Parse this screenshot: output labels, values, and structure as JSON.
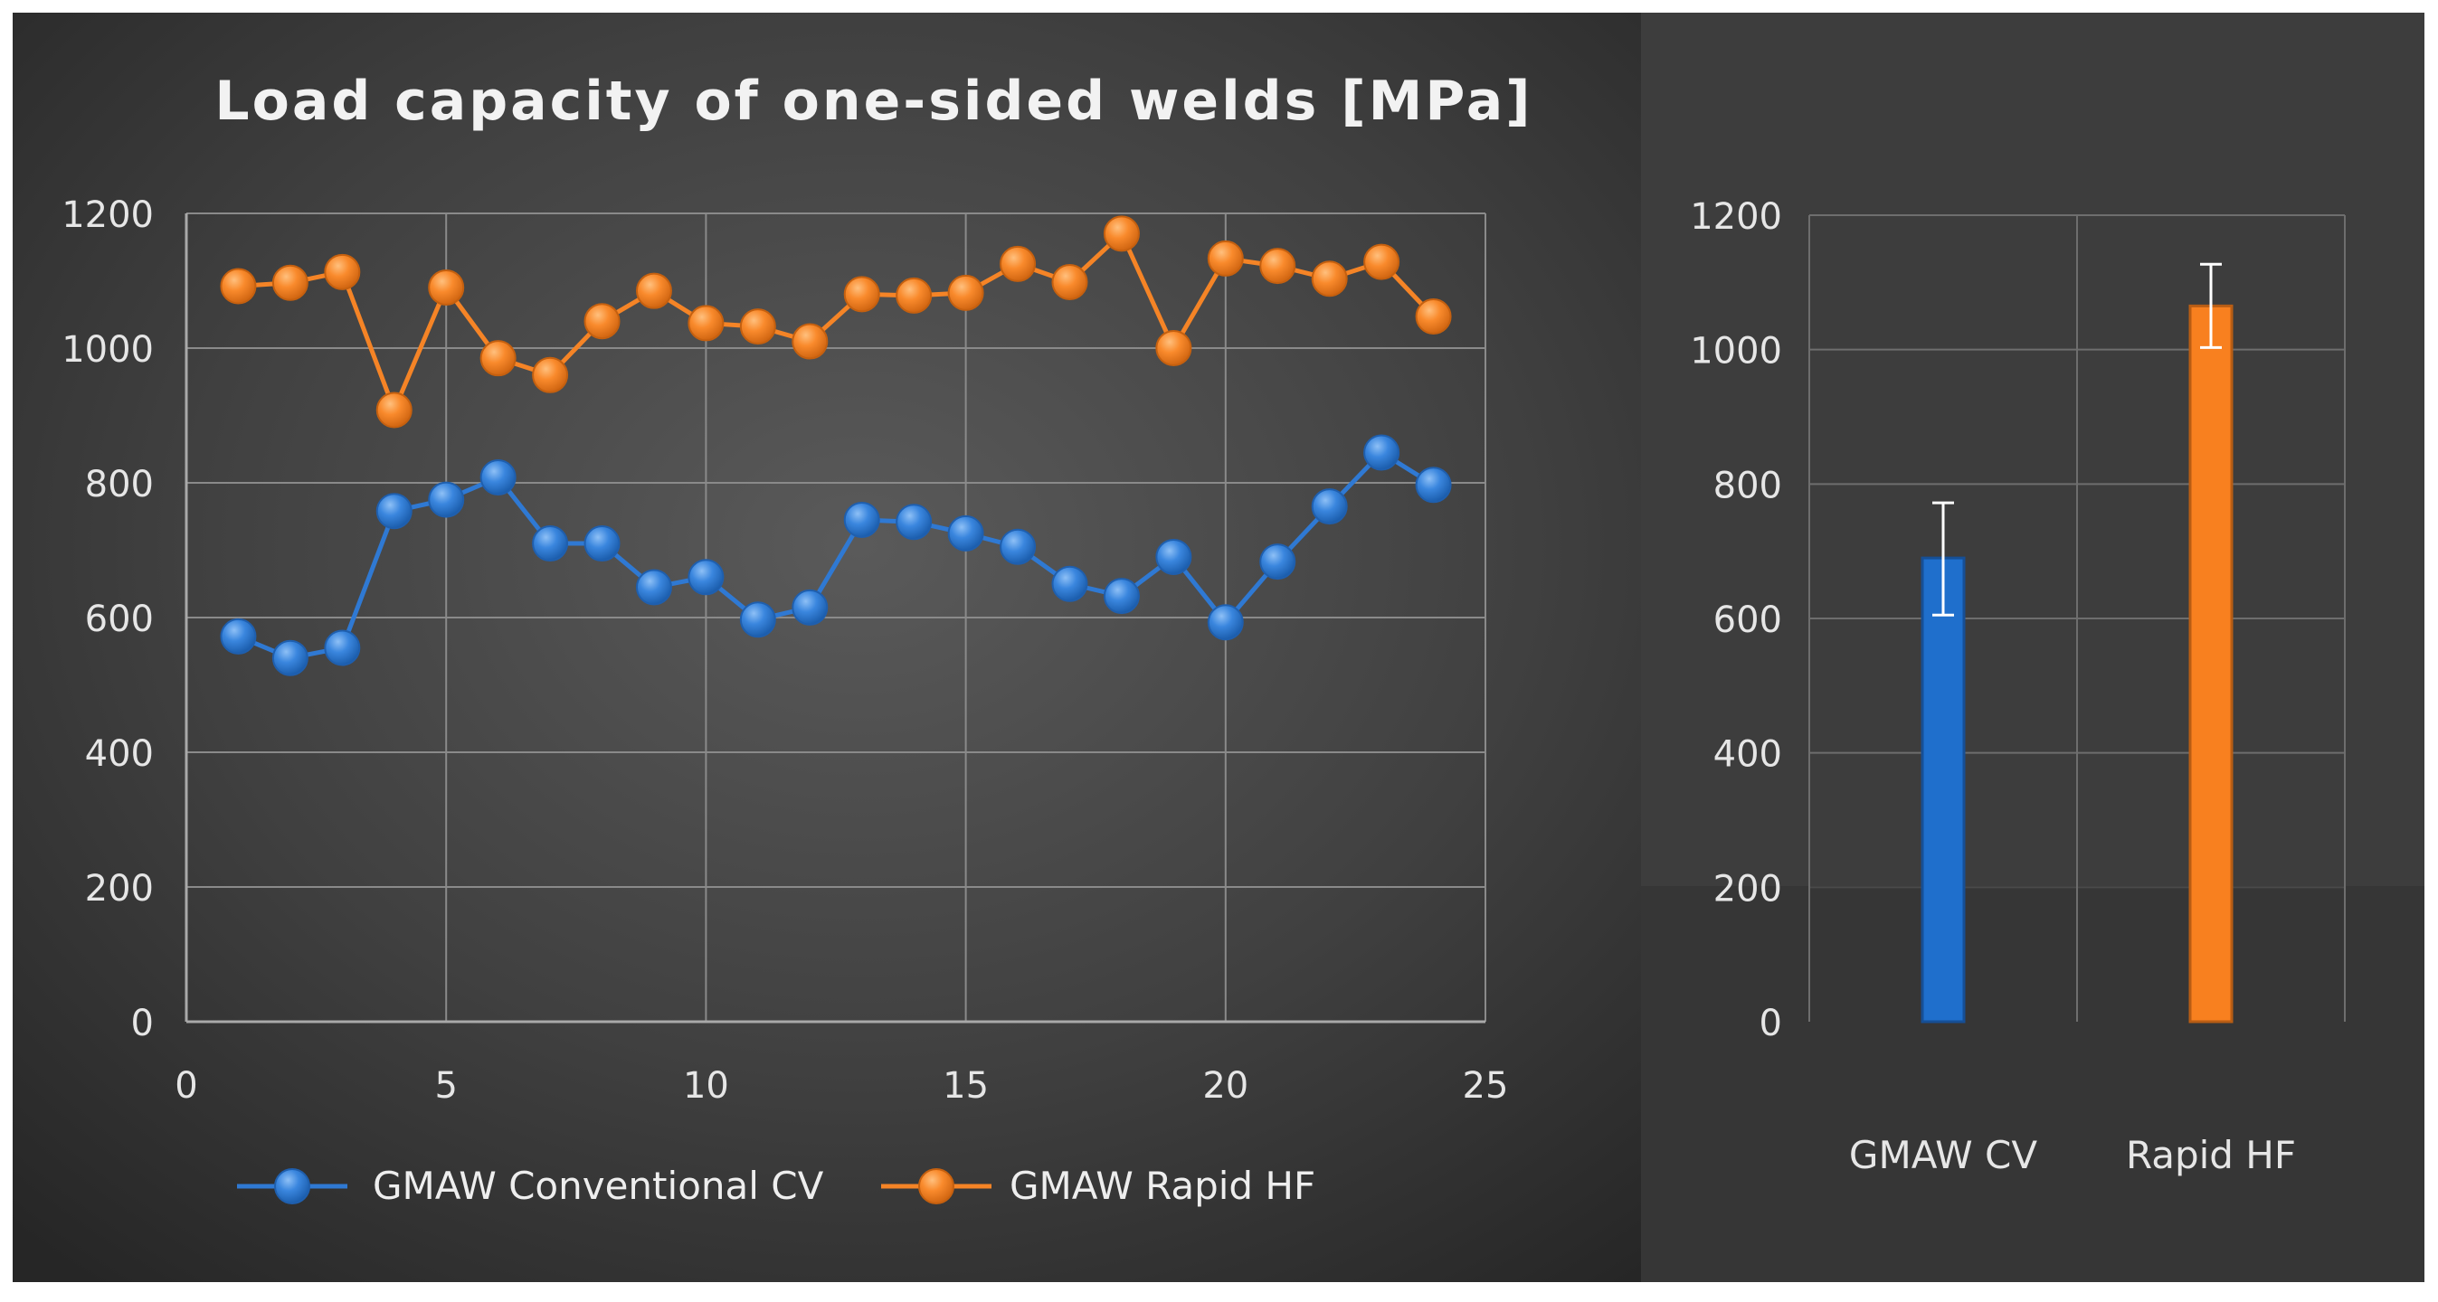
{
  "chart_data": [
    {
      "type": "line",
      "title": "Load capacity of one-sided welds [MPa]",
      "xlabel": "",
      "ylabel": "",
      "xlim": [
        0,
        25
      ],
      "ylim": [
        0,
        1200
      ],
      "xticks": [
        0,
        5,
        10,
        15,
        20,
        25
      ],
      "yticks": [
        0,
        200,
        400,
        600,
        800,
        1000,
        1200
      ],
      "grid": true,
      "legend_position": "bottom",
      "x": [
        1,
        2,
        3,
        4,
        5,
        6,
        7,
        8,
        9,
        10,
        11,
        12,
        13,
        14,
        15,
        16,
        17,
        18,
        19,
        20,
        21,
        22,
        23,
        24
      ],
      "series": [
        {
          "name": "GMAW Conventional CV",
          "color": "#2f79d3",
          "values": [
            572,
            540,
            555,
            758,
            775,
            808,
            710,
            710,
            645,
            660,
            597,
            615,
            745,
            742,
            725,
            705,
            650,
            632,
            690,
            593,
            683,
            765,
            845,
            797
          ]
        },
        {
          "name": "GMAW Rapid HF",
          "color": "#f58426",
          "values": [
            1092,
            1097,
            1113,
            908,
            1090,
            985,
            960,
            1040,
            1085,
            1037,
            1032,
            1010,
            1080,
            1078,
            1082,
            1125,
            1098,
            1170,
            1000,
            1133,
            1122,
            1103,
            1128,
            1047
          ]
        }
      ]
    },
    {
      "type": "bar",
      "title": "",
      "ylim": [
        0,
        1200
      ],
      "yticks": [
        0,
        200,
        400,
        600,
        800,
        1000,
        1200
      ],
      "grid": true,
      "categories": [
        "GMAW CV",
        "Rapid HF"
      ],
      "values": [
        690,
        1065
      ],
      "error_low": [
        605,
        1003
      ],
      "error_high": [
        772,
        1127
      ],
      "colors": [
        "#1f6fcc",
        "#f8801f"
      ]
    }
  ]
}
